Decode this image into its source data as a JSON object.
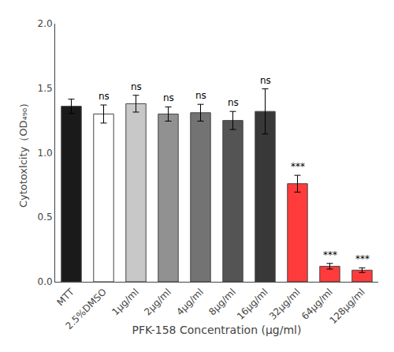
{
  "chart_data": {
    "type": "bar",
    "categories": [
      "MTT",
      "2.5%DMSO",
      "1μg/ml",
      "2μg/ml",
      "4μg/ml",
      "8μg/ml",
      "16μg/ml",
      "32μg/ml",
      "64μg/ml",
      "128μg/ml"
    ],
    "values": [
      1.36,
      1.3,
      1.38,
      1.3,
      1.31,
      1.25,
      1.32,
      0.76,
      0.12,
      0.09
    ],
    "errors": [
      0.055,
      0.07,
      0.065,
      0.055,
      0.065,
      0.07,
      0.175,
      0.065,
      0.022,
      0.018
    ],
    "colors": [
      "#1a1a1a",
      "#ffffff",
      "#c8c8c8",
      "#919191",
      "#737373",
      "#545454",
      "#383838",
      "#ff3b3b",
      "#ff3b3b",
      "#ff3b3b"
    ],
    "annotations": [
      null,
      "ns",
      "ns",
      "ns",
      "ns",
      "ns",
      "ns",
      "***",
      "***",
      "***"
    ],
    "ylabel": "Cytotoxlcity（OD₄₉₀）",
    "xlabel": "PFK-158 Concentration (μg/ml)",
    "ylim": [
      0,
      2.0
    ],
    "yticks": [
      {
        "value": 0,
        "label": "0.0"
      },
      0.5,
      {
        "value": 1,
        "label": "1.0"
      },
      1.5,
      {
        "value": 2,
        "label": "2.0"
      }
    ],
    "grid": false
  }
}
